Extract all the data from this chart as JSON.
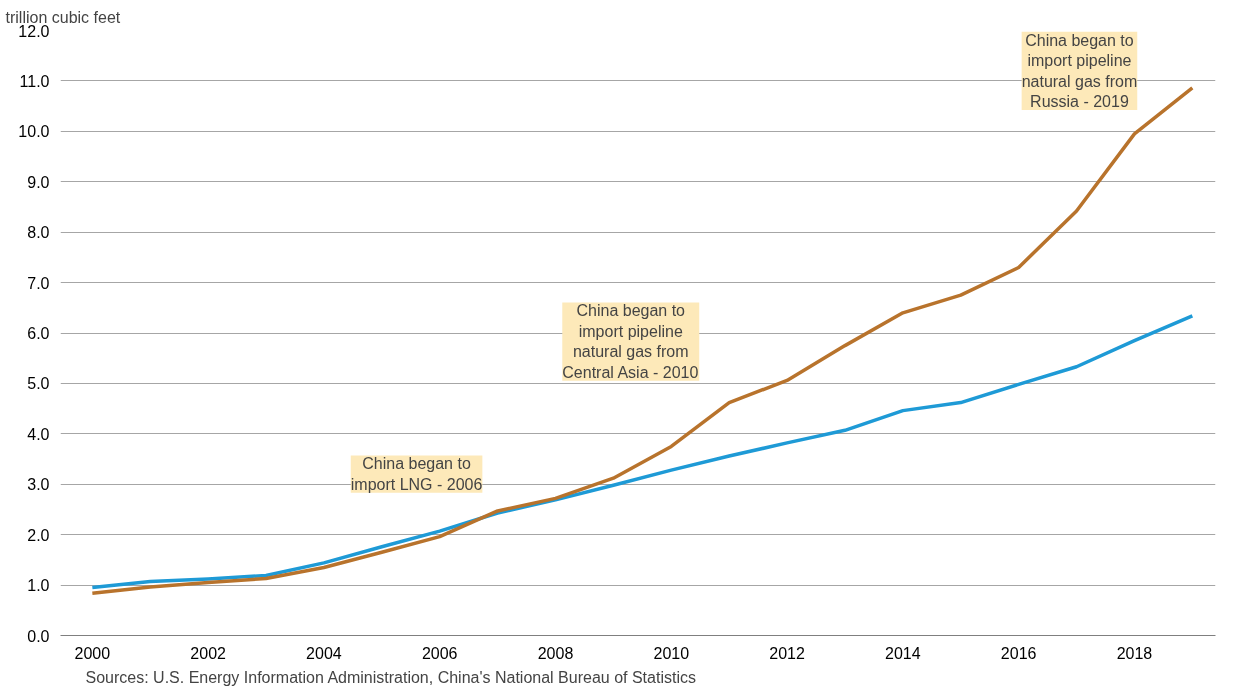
{
  "chart_data": {
    "type": "line",
    "ylabel": "trillion cubic feet",
    "x": [
      2000,
      2001,
      2002,
      2003,
      2004,
      2005,
      2006,
      2007,
      2008,
      2009,
      2010,
      2011,
      2012,
      2013,
      2014,
      2015,
      2016,
      2017,
      2018,
      2019
    ],
    "series": [
      {
        "color": "#1e9ad6",
        "values": [
          0.95,
          1.07,
          1.12,
          1.19,
          1.44,
          1.76,
          2.07,
          2.43,
          2.69,
          2.98,
          3.28,
          3.56,
          3.82,
          4.07,
          4.46,
          4.62,
          4.98,
          5.33,
          5.85,
          6.34
        ]
      },
      {
        "color": "#b8732c",
        "values": [
          0.84,
          0.96,
          1.05,
          1.13,
          1.35,
          1.65,
          1.96,
          2.47,
          2.72,
          3.12,
          3.75,
          4.62,
          5.06,
          5.75,
          6.4,
          6.75,
          7.3,
          8.42,
          9.95,
          10.86
        ]
      }
    ],
    "xlim": [
      1999.45,
      2019.4
    ],
    "xticks": [
      2000,
      2002,
      2004,
      2006,
      2008,
      2010,
      2012,
      2014,
      2016,
      2018
    ],
    "ylim": [
      0,
      12
    ],
    "yticks": [
      {
        "value": 0,
        "label": "0.0"
      },
      {
        "value": 1,
        "label": "1.0"
      },
      {
        "value": 2,
        "label": "2.0"
      },
      {
        "value": 3,
        "label": "3.0"
      },
      {
        "value": 4,
        "label": "4.0"
      },
      {
        "value": 5,
        "label": "5.0"
      },
      {
        "value": 6,
        "label": "6.0"
      },
      {
        "value": 7,
        "label": "7.0"
      },
      {
        "value": 8,
        "label": "8.0"
      },
      {
        "value": 9,
        "label": "9.0"
      },
      {
        "value": 10,
        "label": "10.0"
      },
      {
        "value": 11,
        "label": "11.0"
      },
      {
        "value": 12,
        "label": "12.0"
      }
    ],
    "grid": "y",
    "marker": "none",
    "line_style": "solid",
    "annotations": [
      "China began to\nimport LNG - 2006",
      "China began to\nimport pipeline\nnatural gas from\nCentral Asia - 2010",
      "China began to\nimport pipeline\nnatural gas from\nRussia - 2019",
      "Sources: U.S. Energy Information Administration, China's National Bureau of Statistics"
    ]
  }
}
